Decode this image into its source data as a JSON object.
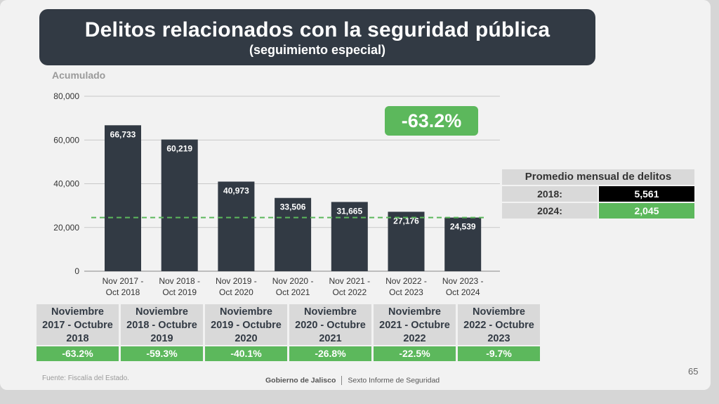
{
  "title": "Delitos relacionados con la seguridad pública",
  "subtitle": "(seguimiento especial)",
  "chart_data": {
    "type": "bar",
    "ylabel": "Acumulado",
    "ylim": [
      0,
      80000
    ],
    "yticks": [
      "0",
      "20,000",
      "40,000",
      "60,000",
      "80,000"
    ],
    "categories": [
      [
        "Nov 2017 -",
        "Oct 2018"
      ],
      [
        "Nov 2018 -",
        "Oct 2019"
      ],
      [
        "Nov 2019 -",
        "Oct 2020"
      ],
      [
        "Nov 2020 -",
        "Oct 2021"
      ],
      [
        "Nov 2021 -",
        "Oct 2022"
      ],
      [
        "Nov 2022 -",
        "Oct 2023"
      ],
      [
        "Nov 2023 -",
        "Oct 2024"
      ]
    ],
    "values": [
      66733,
      60219,
      40973,
      33506,
      31665,
      27176,
      24539
    ],
    "value_labels": [
      "66,733",
      "60,219",
      "40,973",
      "33,506",
      "31,665",
      "27,176",
      "24,539"
    ],
    "reference_line": 24539,
    "bar_color": "#323a44",
    "line_color": "#5cb85c",
    "grid": true
  },
  "change_badge": "-63.2%",
  "avg_table": {
    "header": "Promedio mensual de delitos",
    "rows": [
      {
        "label": "2018:",
        "value": "5,561"
      },
      {
        "label": "2024:",
        "value": "2,045"
      }
    ]
  },
  "period_table": [
    {
      "line1": "Noviembre",
      "line2": "2017 - Octubre",
      "line3": "2018",
      "value": "-63.2%"
    },
    {
      "line1": "Noviembre",
      "line2": "2018 - Octubre",
      "line3": "2019",
      "value": "-59.3%"
    },
    {
      "line1": "Noviembre",
      "line2": "2019 - Octubre",
      "line3": "2020",
      "value": "-40.1%"
    },
    {
      "line1": "Noviembre",
      "line2": "2020 - Octubre",
      "line3": "2021",
      "value": "-26.8%"
    },
    {
      "line1": "Noviembre",
      "line2": "2021 - Octubre",
      "line3": "2022",
      "value": "-22.5%"
    },
    {
      "line1": "Noviembre",
      "line2": "2022 - Octubre",
      "line3": "2023",
      "value": "-9.7%"
    }
  ],
  "source": "Fuente: Fiscalía del Estado.",
  "footer": {
    "left": "Gobierno de Jalisco",
    "right": "Sexto Informe de Seguridad"
  },
  "page_number": "65",
  "colors": {
    "dark": "#323a44",
    "green": "#5cb85c",
    "background": "#f2f2f2"
  }
}
